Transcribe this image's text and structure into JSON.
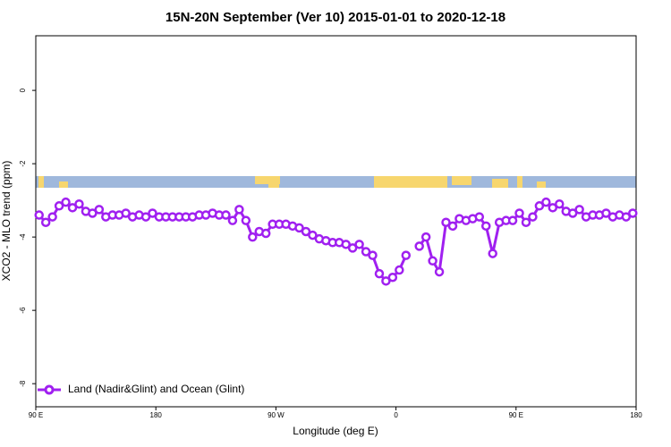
{
  "chart_data": {
    "type": "line",
    "title": "15N-20N September (Ver 10)   2015-01-01 to 2020-12-18",
    "xlabel": "Longitude (deg E)",
    "ylabel": "XCO2 - MLO trend (ppm)",
    "xlim": [
      90,
      540
    ],
    "ylim": [
      -8.63,
      1.49
    ],
    "xticks": [
      {
        "value": 90,
        "label": "90 E"
      },
      {
        "value": 180,
        "label": "180"
      },
      {
        "value": 270,
        "label": "90 W"
      },
      {
        "value": 360,
        "label": "0"
      },
      {
        "value": 450,
        "label": "90 E"
      },
      {
        "value": 540,
        "label": "180"
      }
    ],
    "yticks": [
      0,
      -2,
      -4,
      -6,
      -8
    ],
    "legend": "bottom-left",
    "x": [
      92.5,
      97.5,
      102.5,
      107.5,
      112.5,
      117.5,
      122.5,
      127.5,
      132.5,
      137.5,
      142.5,
      147.5,
      152.5,
      157.5,
      162.5,
      167.5,
      172.5,
      177.5,
      182.5,
      187.5,
      192.5,
      197.5,
      202.5,
      207.5,
      212.5,
      217.5,
      222.5,
      227.5,
      232.5,
      237.5,
      242.5,
      247.5,
      252.5,
      257.5,
      262.5,
      267.5,
      272.5,
      277.5,
      282.5,
      287.5,
      292.5,
      297.5,
      302.5,
      307.5,
      312.5,
      317.5,
      322.5,
      327.5,
      332.5,
      337.5,
      342.5,
      347.5,
      352.5,
      357.5,
      362.5,
      367.5,
      372.5,
      377.5,
      382.5,
      387.5,
      392.5,
      397.5,
      402.5,
      407.5,
      412.5,
      417.5,
      422.5,
      427.5,
      432.5,
      437.5,
      442.5,
      447.5,
      452.5,
      457.5,
      462.5,
      467.5,
      472.5,
      477.5,
      482.5,
      487.5,
      492.5,
      497.5,
      502.5,
      507.5,
      512.5,
      517.5,
      522.5,
      527.5,
      532.5,
      537.5
    ],
    "series": [
      {
        "name": "Land (Nadir&Glint) and Ocean (Glint)",
        "color": "#a020f0",
        "values": [
          -3.4,
          -3.6,
          -3.45,
          -3.15,
          -3.05,
          -3.2,
          -3.1,
          -3.3,
          -3.35,
          -3.25,
          -3.45,
          -3.4,
          -3.4,
          -3.35,
          -3.45,
          -3.4,
          -3.45,
          -3.35,
          -3.45,
          -3.45,
          -3.45,
          -3.45,
          -3.45,
          -3.45,
          -3.4,
          -3.4,
          -3.35,
          -3.4,
          -3.4,
          -3.55,
          -3.25,
          -3.55,
          -4.0,
          -3.85,
          -3.9,
          -3.65,
          -3.65,
          -3.65,
          -3.7,
          -3.75,
          -3.85,
          -3.95,
          -4.05,
          -4.1,
          -4.15,
          -4.15,
          -4.2,
          -4.3,
          -4.2,
          -4.4,
          -4.5,
          -5.0,
          -5.2,
          -5.1,
          -4.9,
          -4.5,
          null,
          -4.25,
          -4.0,
          -4.65,
          -4.95,
          -3.6,
          -3.7,
          -3.5,
          -3.55,
          -3.5,
          -3.45,
          -3.7,
          -4.45,
          -3.6,
          -3.55,
          -3.55,
          -3.35,
          -3.6,
          -3.45,
          -3.15,
          -3.05,
          -3.2,
          -3.1,
          -3.3,
          -3.35,
          -3.25,
          -3.45,
          -3.4,
          -3.4,
          -3.35,
          -3.45,
          -3.4,
          -3.45,
          -3.35
        ]
      }
    ]
  }
}
